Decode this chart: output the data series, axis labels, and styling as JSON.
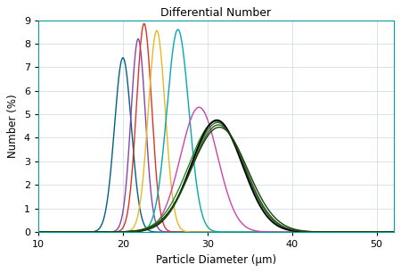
{
  "title": "Differential Number",
  "xlabel": "Particle Diameter (μm)",
  "ylabel": "Number (%)",
  "xlim": [
    10,
    52
  ],
  "ylim": [
    0,
    9
  ],
  "yticks": [
    0,
    1,
    2,
    3,
    4,
    5,
    6,
    7,
    8,
    9
  ],
  "xticks": [
    10,
    20,
    30,
    40,
    50
  ],
  "bg_color": "#ffffff",
  "fig_color": "#ffffff",
  "border_color": "#00a0a0",
  "grid_color": "#c8d8e8",
  "curves": [
    {
      "mean": 20.0,
      "std": 1.0,
      "amp": 7.4,
      "color": "#006080",
      "lw": 1.0
    },
    {
      "mean": 21.8,
      "std": 0.85,
      "amp": 8.2,
      "color": "#8844aa",
      "lw": 1.0
    },
    {
      "mean": 22.5,
      "std": 0.9,
      "amp": 8.85,
      "color": "#dd3322",
      "lw": 1.0
    },
    {
      "mean": 24.0,
      "std": 1.0,
      "amp": 8.55,
      "color": "#e8b820",
      "lw": 1.0
    },
    {
      "mean": 26.5,
      "std": 1.3,
      "amp": 8.6,
      "color": "#00aaaa",
      "lw": 1.0
    },
    {
      "mean": 29.0,
      "std": 2.2,
      "amp": 5.3,
      "color": "#cc44aa",
      "lw": 1.0
    },
    {
      "mean": 31.0,
      "std": 3.2,
      "amp": 4.7,
      "color": "#228B22",
      "lw": 1.0
    },
    {
      "mean": 31.2,
      "std": 3.1,
      "amp": 4.65,
      "color": "#336633",
      "lw": 1.0
    },
    {
      "mean": 31.1,
      "std": 3.0,
      "amp": 4.75,
      "color": "#000000",
      "lw": 1.3
    },
    {
      "mean": 31.3,
      "std": 3.15,
      "amp": 4.55,
      "color": "#2a5a18",
      "lw": 1.0
    },
    {
      "mean": 31.4,
      "std": 3.3,
      "amp": 4.45,
      "color": "#1a4010",
      "lw": 1.0
    }
  ],
  "figsize": [
    4.5,
    3.06
  ],
  "dpi": 100
}
